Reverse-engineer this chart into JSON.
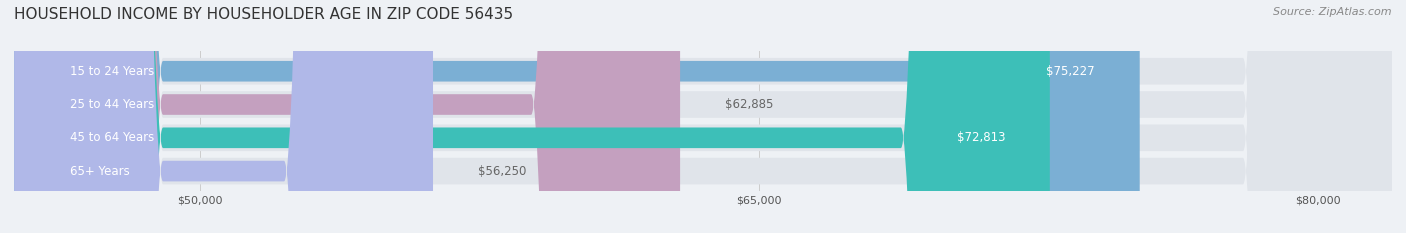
{
  "title": "HOUSEHOLD INCOME BY HOUSEHOLDER AGE IN ZIP CODE 56435",
  "source": "Source: ZipAtlas.com",
  "categories": [
    "15 to 24 Years",
    "25 to 44 Years",
    "45 to 64 Years",
    "65+ Years"
  ],
  "values": [
    75227,
    62885,
    72813,
    56250
  ],
  "bar_colors": [
    "#7bafd4",
    "#c4a0bf",
    "#3dbfb8",
    "#b0b8e8"
  ],
  "bar_labels": [
    "$75,227",
    "$62,885",
    "$72,813",
    "$56,250"
  ],
  "label_in_bar": [
    true,
    false,
    true,
    false
  ],
  "xlim_min": 45000,
  "xlim_max": 82000,
  "xticks": [
    50000,
    65000,
    80000
  ],
  "xtick_labels": [
    "$50,000",
    "$65,000",
    "$80,000"
  ],
  "background_color": "#eef1f5",
  "bar_bg_color": "#e0e4ea",
  "title_fontsize": 11,
  "source_fontsize": 8,
  "label_fontsize": 8.5
}
